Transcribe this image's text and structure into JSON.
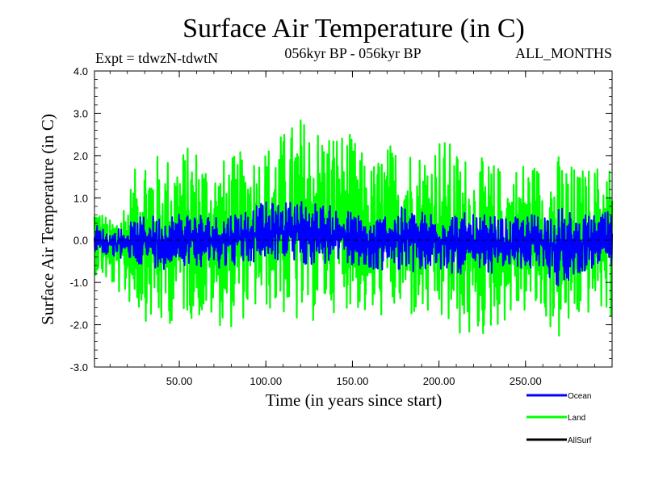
{
  "chart_data": {
    "type": "line",
    "title": "Surface Air Temperature (in C)",
    "subtitle_left": "Expt = tdwzN-tdwtN",
    "subtitle_center": "056kyr BP - 056kyr BP",
    "subtitle_right": "ALL_MONTHS",
    "xlabel": "Time (in years since start)",
    "ylabel": "Surface Air Temperature (in C)",
    "xlim": [
      1,
      300
    ],
    "ylim": [
      -3.0,
      4.0
    ],
    "xticks": [
      {
        "value": 50,
        "label": "50.00"
      },
      {
        "value": 100,
        "label": "100.00"
      },
      {
        "value": 150,
        "label": "150.00"
      },
      {
        "value": 200,
        "label": "200.00"
      },
      {
        "value": 250,
        "label": "250.00"
      }
    ],
    "yticks": [
      {
        "value": 4.0,
        "label": "4.0"
      },
      {
        "value": 3.0,
        "label": "3.0"
      },
      {
        "value": 2.0,
        "label": "2.0"
      },
      {
        "value": 1.0,
        "label": "1.0"
      },
      {
        "value": 0.0,
        "label": "0.0"
      },
      {
        "value": -1.0,
        "label": "-1.0"
      },
      {
        "value": -2.0,
        "label": "-2.0"
      },
      {
        "value": -3.0,
        "label": "-3.0"
      }
    ],
    "series": [
      {
        "name": "Land",
        "color": "#00ff00",
        "approx_envelope": {
          "x": [
            1,
            10,
            20,
            30,
            40,
            50,
            60,
            70,
            80,
            90,
            100,
            110,
            120,
            130,
            140,
            150,
            160,
            170,
            180,
            190,
            200,
            210,
            220,
            230,
            240,
            250,
            260,
            270,
            280,
            290,
            300
          ],
          "upper": [
            1.0,
            0.5,
            1.2,
            2.3,
            2.0,
            2.2,
            2.3,
            1.9,
            2.0,
            2.2,
            2.3,
            2.6,
            3.0,
            2.8,
            2.7,
            2.5,
            1.8,
            2.3,
            2.4,
            2.2,
            2.6,
            2.2,
            2.0,
            1.9,
            1.7,
            2.0,
            1.8,
            2.1,
            1.7,
            1.8,
            2.0
          ],
          "lower": [
            -0.8,
            -1.1,
            -1.5,
            -1.9,
            -2.2,
            -1.8,
            -1.9,
            -2.0,
            -2.1,
            -1.8,
            -1.7,
            -1.8,
            -2.2,
            -1.9,
            -1.7,
            -1.6,
            -2.0,
            -1.8,
            -1.9,
            -2.0,
            -2.1,
            -2.3,
            -2.5,
            -2.2,
            -1.9,
            -1.8,
            -1.9,
            -2.5,
            -2.0,
            -1.7,
            -1.9
          ]
        }
      },
      {
        "name": "Ocean",
        "color": "#0000ff",
        "approx_envelope": {
          "x": [
            1,
            10,
            20,
            30,
            40,
            50,
            60,
            70,
            80,
            90,
            100,
            110,
            120,
            130,
            140,
            150,
            160,
            170,
            180,
            190,
            200,
            210,
            220,
            230,
            240,
            250,
            260,
            270,
            280,
            290,
            300
          ],
          "upper": [
            0.4,
            0.2,
            0.4,
            0.6,
            0.6,
            0.7,
            0.7,
            0.6,
            0.7,
            0.8,
            0.9,
            0.9,
            1.0,
            0.9,
            0.8,
            0.7,
            0.5,
            0.7,
            0.8,
            0.7,
            0.8,
            0.7,
            0.6,
            0.6,
            0.5,
            0.6,
            0.7,
            0.8,
            0.6,
            0.6,
            0.7
          ],
          "lower": [
            -0.3,
            -0.4,
            -0.5,
            -0.6,
            -0.7,
            -0.6,
            -0.6,
            -0.7,
            -0.6,
            -0.6,
            -0.5,
            -0.5,
            -0.6,
            -0.6,
            -0.6,
            -0.6,
            -0.8,
            -0.7,
            -0.7,
            -0.8,
            -0.8,
            -0.8,
            -0.9,
            -0.8,
            -0.7,
            -0.7,
            -0.7,
            -1.2,
            -0.8,
            -0.7,
            -0.8
          ]
        }
      },
      {
        "name": "AllSurf",
        "color": "#000000",
        "approx_envelope": null
      }
    ],
    "reference_line": {
      "y": 0.0,
      "style": "dashed"
    },
    "legend": {
      "placement": "bottom-right",
      "entries": [
        {
          "label": "Ocean",
          "color": "#0000ff"
        },
        {
          "label": "Land",
          "color": "#00ff00"
        },
        {
          "label": "AllSurf",
          "color": "#000000"
        }
      ]
    }
  }
}
